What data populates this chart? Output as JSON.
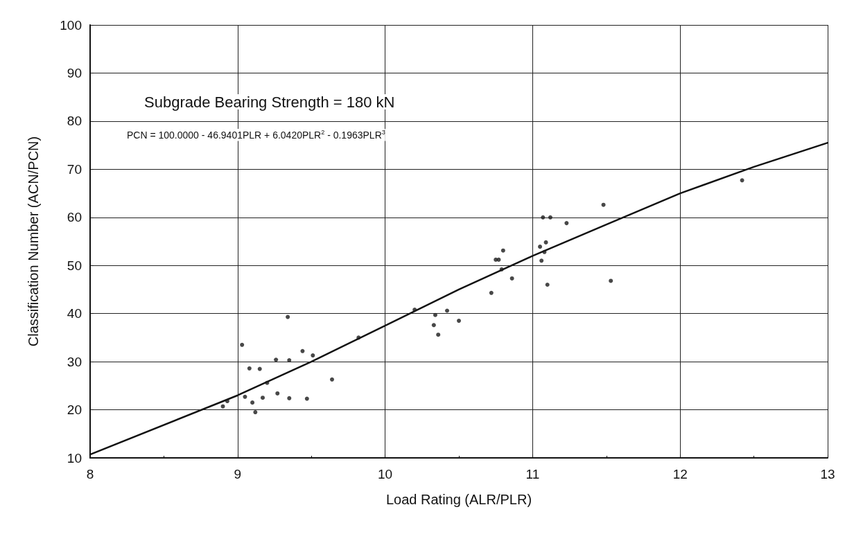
{
  "chart_data": {
    "type": "scatter",
    "xlabel": "Load Rating (ALR/PLR)",
    "ylabel": "Classification Number (ACN/PCN)",
    "annotations": [
      "Subgrade Bearing Strength = 180 kN",
      "PCN = 100.0000 - 46.9401PLR + 6.0420PLR$^{2}$ - 0.1963PLR$^{3}$"
    ],
    "xlim": [
      8,
      13
    ],
    "xticks": [
      8,
      9,
      10,
      11,
      12,
      13
    ],
    "ylim": [
      10,
      100
    ],
    "yticks": [
      10,
      20,
      30,
      40,
      50,
      60,
      70,
      80,
      90,
      100
    ],
    "grid": true,
    "marker": "circle",
    "series": [
      {
        "color": "#1a1a1a",
        "x": [
          8.9,
          8.93,
          9.03,
          9.05,
          9.08,
          9.1,
          9.12,
          9.15,
          9.17,
          9.2,
          9.26,
          9.27,
          9.34,
          9.35,
          9.35,
          9.44,
          9.47,
          9.51,
          9.64,
          9.82,
          10.2,
          10.33,
          10.34,
          10.36,
          10.42,
          10.5,
          10.72,
          10.75,
          10.77,
          10.79,
          10.8,
          10.86,
          11.05,
          11.06,
          11.07,
          11.08,
          11.09,
          11.1,
          11.12,
          11.23,
          11.48,
          11.53,
          12.42
        ],
        "values": [
          20.7,
          21.8,
          33.5,
          22.7,
          28.6,
          21.5,
          19.5,
          28.5,
          22.5,
          25.6,
          30.4,
          23.4,
          39.3,
          30.3,
          22.4,
          32.2,
          22.3,
          31.3,
          26.3,
          35,
          40.8,
          37.6,
          39.7,
          35.6,
          40.6,
          38.5,
          44.3,
          51.2,
          51.2,
          49.2,
          53.1,
          47.3,
          53.9,
          51,
          60,
          52.8,
          54.8,
          46,
          60,
          58.8,
          62.6,
          46.8,
          67.7
        ]
      },
      {
        "type": "line",
        "color": "#111111",
        "marker": "none",
        "line_style": "solid",
        "x": [
          8,
          9,
          9.5,
          10,
          10.5,
          11,
          11.5,
          12,
          12.5,
          13
        ],
        "values": [
          10.7,
          23,
          30,
          37.5,
          45,
          52,
          58.5,
          65,
          70.5,
          75.5
        ]
      }
    ]
  }
}
